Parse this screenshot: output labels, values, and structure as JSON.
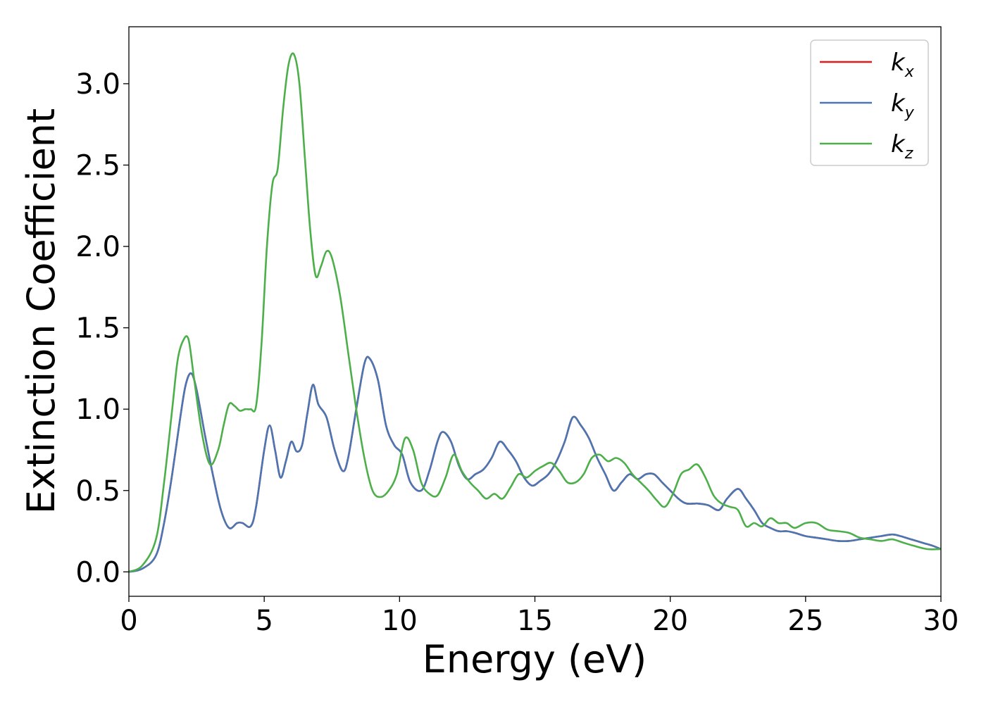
{
  "chart_data": {
    "type": "line",
    "xlabel": "Energy (eV)",
    "ylabel": "Extinction Coefficient",
    "xlim": [
      0,
      30
    ],
    "ylim": [
      -0.15,
      3.35
    ],
    "xticks": [
      0,
      5,
      10,
      15,
      20,
      25,
      30
    ],
    "xtick_labels": [
      "0",
      "5",
      "10",
      "15",
      "20",
      "25",
      "30"
    ],
    "yticks": [
      0.0,
      0.5,
      1.0,
      1.5,
      2.0,
      2.5,
      3.0
    ],
    "ytick_labels": [
      "0.0",
      "0.5",
      "1.0",
      "1.5",
      "2.0",
      "2.5",
      "3.0"
    ],
    "grid": false,
    "legend": "top-right",
    "series": [
      {
        "name": "k",
        "subscript": "x",
        "color": "#e41a1c",
        "x": [
          0,
          0.5,
          1.0,
          1.3,
          1.6,
          1.9,
          2.1,
          2.3,
          2.5,
          2.8,
          3.1,
          3.4,
          3.7,
          4.0,
          4.2,
          4.5,
          4.7,
          5.0,
          5.2,
          5.4,
          5.6,
          5.8,
          6.0,
          6.2,
          6.4,
          6.6,
          6.8,
          7.0,
          7.3,
          7.6,
          7.9,
          8.1,
          8.4,
          8.7,
          8.9,
          9.2,
          9.5,
          9.8,
          10.1,
          10.4,
          10.8,
          11.1,
          11.4,
          11.6,
          11.9,
          12.2,
          12.5,
          12.8,
          13.1,
          13.4,
          13.7,
          14.0,
          14.3,
          14.6,
          14.9,
          15.2,
          15.5,
          15.8,
          16.1,
          16.4,
          16.7,
          17.0,
          17.3,
          17.6,
          17.9,
          18.2,
          18.5,
          18.8,
          19.1,
          19.4,
          19.7,
          20.0,
          20.3,
          20.6,
          21.0,
          21.4,
          21.8,
          22.1,
          22.5,
          22.8,
          23.1,
          23.4,
          23.7,
          24.0,
          24.3,
          24.6,
          25.0,
          25.4,
          25.8,
          26.2,
          26.6,
          27.0,
          27.4,
          27.8,
          28.2,
          28.5,
          28.9,
          29.3,
          29.7,
          30.0
        ],
        "y": [
          0.0,
          0.02,
          0.1,
          0.3,
          0.6,
          0.95,
          1.15,
          1.22,
          1.12,
          0.85,
          0.6,
          0.38,
          0.27,
          0.3,
          0.3,
          0.28,
          0.4,
          0.75,
          0.9,
          0.75,
          0.58,
          0.68,
          0.8,
          0.74,
          0.78,
          0.98,
          1.15,
          1.03,
          0.95,
          0.75,
          0.62,
          0.7,
          1.0,
          1.28,
          1.31,
          1.18,
          0.9,
          0.78,
          0.72,
          0.55,
          0.5,
          0.62,
          0.8,
          0.86,
          0.8,
          0.65,
          0.57,
          0.6,
          0.63,
          0.7,
          0.8,
          0.75,
          0.68,
          0.58,
          0.53,
          0.56,
          0.6,
          0.68,
          0.8,
          0.95,
          0.9,
          0.82,
          0.7,
          0.6,
          0.5,
          0.55,
          0.6,
          0.57,
          0.6,
          0.6,
          0.55,
          0.5,
          0.45,
          0.42,
          0.42,
          0.41,
          0.38,
          0.45,
          0.51,
          0.45,
          0.38,
          0.3,
          0.27,
          0.25,
          0.25,
          0.24,
          0.22,
          0.21,
          0.2,
          0.19,
          0.19,
          0.2,
          0.21,
          0.22,
          0.23,
          0.22,
          0.2,
          0.18,
          0.16,
          0.14
        ]
      },
      {
        "name": "k",
        "subscript": "y",
        "color": "#4a77b4",
        "x": [
          0,
          0.5,
          1.0,
          1.3,
          1.6,
          1.9,
          2.1,
          2.3,
          2.5,
          2.8,
          3.1,
          3.4,
          3.7,
          4.0,
          4.2,
          4.5,
          4.7,
          5.0,
          5.2,
          5.4,
          5.6,
          5.8,
          6.0,
          6.2,
          6.4,
          6.6,
          6.8,
          7.0,
          7.3,
          7.6,
          7.9,
          8.1,
          8.4,
          8.7,
          8.9,
          9.2,
          9.5,
          9.8,
          10.1,
          10.4,
          10.8,
          11.1,
          11.4,
          11.6,
          11.9,
          12.2,
          12.5,
          12.8,
          13.1,
          13.4,
          13.7,
          14.0,
          14.3,
          14.6,
          14.9,
          15.2,
          15.5,
          15.8,
          16.1,
          16.4,
          16.7,
          17.0,
          17.3,
          17.6,
          17.9,
          18.2,
          18.5,
          18.8,
          19.1,
          19.4,
          19.7,
          20.0,
          20.3,
          20.6,
          21.0,
          21.4,
          21.8,
          22.1,
          22.5,
          22.8,
          23.1,
          23.4,
          23.7,
          24.0,
          24.3,
          24.6,
          25.0,
          25.4,
          25.8,
          26.2,
          26.6,
          27.0,
          27.4,
          27.8,
          28.2,
          28.5,
          28.9,
          29.3,
          29.7,
          30.0
        ],
        "y": [
          0.0,
          0.02,
          0.1,
          0.3,
          0.6,
          0.95,
          1.15,
          1.22,
          1.12,
          0.85,
          0.6,
          0.38,
          0.27,
          0.3,
          0.3,
          0.28,
          0.4,
          0.75,
          0.9,
          0.75,
          0.58,
          0.68,
          0.8,
          0.74,
          0.78,
          0.98,
          1.15,
          1.03,
          0.95,
          0.75,
          0.62,
          0.7,
          1.0,
          1.28,
          1.31,
          1.18,
          0.9,
          0.78,
          0.72,
          0.55,
          0.5,
          0.62,
          0.8,
          0.86,
          0.8,
          0.65,
          0.57,
          0.6,
          0.63,
          0.7,
          0.8,
          0.75,
          0.68,
          0.58,
          0.53,
          0.56,
          0.6,
          0.68,
          0.8,
          0.95,
          0.9,
          0.82,
          0.7,
          0.6,
          0.5,
          0.55,
          0.6,
          0.57,
          0.6,
          0.6,
          0.55,
          0.5,
          0.45,
          0.42,
          0.42,
          0.41,
          0.38,
          0.45,
          0.51,
          0.45,
          0.38,
          0.3,
          0.27,
          0.25,
          0.25,
          0.24,
          0.22,
          0.21,
          0.2,
          0.19,
          0.19,
          0.2,
          0.21,
          0.22,
          0.23,
          0.22,
          0.2,
          0.18,
          0.16,
          0.14
        ]
      },
      {
        "name": "k",
        "subscript": "z",
        "color": "#4daf4a",
        "x": [
          0,
          0.5,
          1.0,
          1.3,
          1.6,
          1.8,
          2.0,
          2.2,
          2.4,
          2.7,
          3.0,
          3.3,
          3.5,
          3.7,
          3.9,
          4.1,
          4.3,
          4.5,
          4.7,
          4.9,
          5.1,
          5.3,
          5.5,
          5.7,
          5.9,
          6.1,
          6.3,
          6.5,
          6.7,
          6.9,
          7.1,
          7.3,
          7.5,
          7.8,
          8.1,
          8.4,
          8.7,
          9.0,
          9.3,
          9.6,
          9.9,
          10.2,
          10.5,
          10.8,
          11.1,
          11.4,
          11.7,
          12.0,
          12.3,
          12.6,
          12.9,
          13.2,
          13.5,
          13.8,
          14.1,
          14.4,
          14.7,
          15.0,
          15.3,
          15.6,
          15.9,
          16.2,
          16.5,
          16.8,
          17.1,
          17.4,
          17.7,
          18.0,
          18.3,
          18.6,
          18.9,
          19.2,
          19.5,
          19.8,
          20.1,
          20.4,
          20.7,
          21.0,
          21.3,
          21.6,
          21.9,
          22.2,
          22.5,
          22.8,
          23.1,
          23.4,
          23.7,
          24.0,
          24.3,
          24.6,
          25.0,
          25.4,
          25.8,
          26.2,
          26.6,
          27.0,
          27.4,
          27.8,
          28.2,
          28.6,
          29.0,
          29.5,
          30.0
        ],
        "y": [
          0.0,
          0.04,
          0.2,
          0.55,
          1.0,
          1.3,
          1.42,
          1.43,
          1.2,
          0.85,
          0.66,
          0.75,
          0.9,
          1.03,
          1.02,
          0.99,
          1.0,
          1.0,
          1.02,
          1.4,
          2.0,
          2.38,
          2.48,
          2.85,
          3.12,
          3.18,
          3.0,
          2.55,
          2.1,
          1.82,
          1.88,
          1.97,
          1.93,
          1.7,
          1.35,
          1.0,
          0.7,
          0.5,
          0.46,
          0.5,
          0.6,
          0.82,
          0.75,
          0.55,
          0.48,
          0.47,
          0.58,
          0.72,
          0.62,
          0.55,
          0.5,
          0.45,
          0.48,
          0.45,
          0.52,
          0.6,
          0.58,
          0.62,
          0.65,
          0.67,
          0.62,
          0.55,
          0.55,
          0.6,
          0.7,
          0.72,
          0.68,
          0.7,
          0.67,
          0.6,
          0.55,
          0.5,
          0.44,
          0.4,
          0.48,
          0.6,
          0.63,
          0.66,
          0.58,
          0.47,
          0.42,
          0.4,
          0.38,
          0.28,
          0.3,
          0.28,
          0.33,
          0.3,
          0.3,
          0.27,
          0.3,
          0.3,
          0.26,
          0.25,
          0.24,
          0.21,
          0.2,
          0.19,
          0.2,
          0.18,
          0.16,
          0.14,
          0.14
        ]
      }
    ]
  }
}
